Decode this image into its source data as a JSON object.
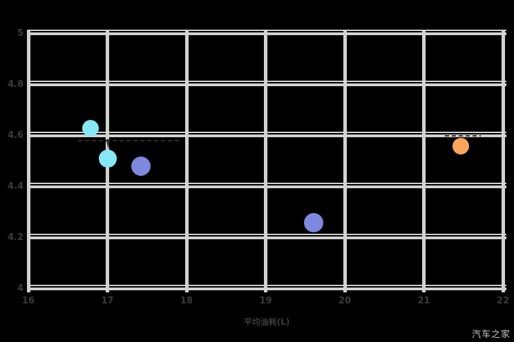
{
  "watermark": {
    "label": "汽车之家"
  },
  "colors": {
    "background": "#000000",
    "gridline": "#d2d2d2",
    "tick_label": "#3b3b3b",
    "axis_title": "#3b3b3b",
    "watermark_text": "#c6c6c6",
    "artifact": "#2e2e2e",
    "cyan_series": "#87e8f5",
    "blue_series": "#7d88de",
    "orange_series": "#fba55c"
  },
  "chart_data": {
    "type": "scatter",
    "title": "",
    "xlabel": "平均油耗(L)",
    "ylabel": "",
    "xlim": [
      16,
      22
    ],
    "ylim": [
      4,
      5
    ],
    "x_ticks": [
      "16",
      "17",
      "18",
      "19",
      "20",
      "21",
      "22"
    ],
    "y_ticks": [
      "5",
      "4.8",
      "4.6",
      "4.4",
      "4.2",
      "4"
    ],
    "grid": true,
    "legend_position": "none",
    "series": [
      {
        "name": "cyan-series",
        "color": "#87e8f5",
        "points": [
          {
            "x": 16.79,
            "y": 4.63,
            "r": 12
          },
          {
            "x": 17.0,
            "y": 4.51,
            "r": 13
          }
        ]
      },
      {
        "name": "blue-series",
        "color": "#7d88de",
        "points": [
          {
            "x": 17.42,
            "y": 4.48,
            "r": 14
          },
          {
            "x": 19.61,
            "y": 4.26,
            "r": 14
          }
        ]
      },
      {
        "name": "orange-series",
        "color": "#fba55c",
        "points": [
          {
            "x": 21.47,
            "y": 4.56,
            "r": 12
          }
        ]
      }
    ],
    "annotations": [
      {
        "type": "dashed-line",
        "x1": 16.63,
        "x2": 17.9,
        "y": 4.58
      },
      {
        "type": "dashed-line",
        "x1": 21.27,
        "x2": 21.72,
        "y": 4.6
      },
      {
        "type": "cursor",
        "x": 17.02,
        "y": 4.585
      }
    ]
  }
}
